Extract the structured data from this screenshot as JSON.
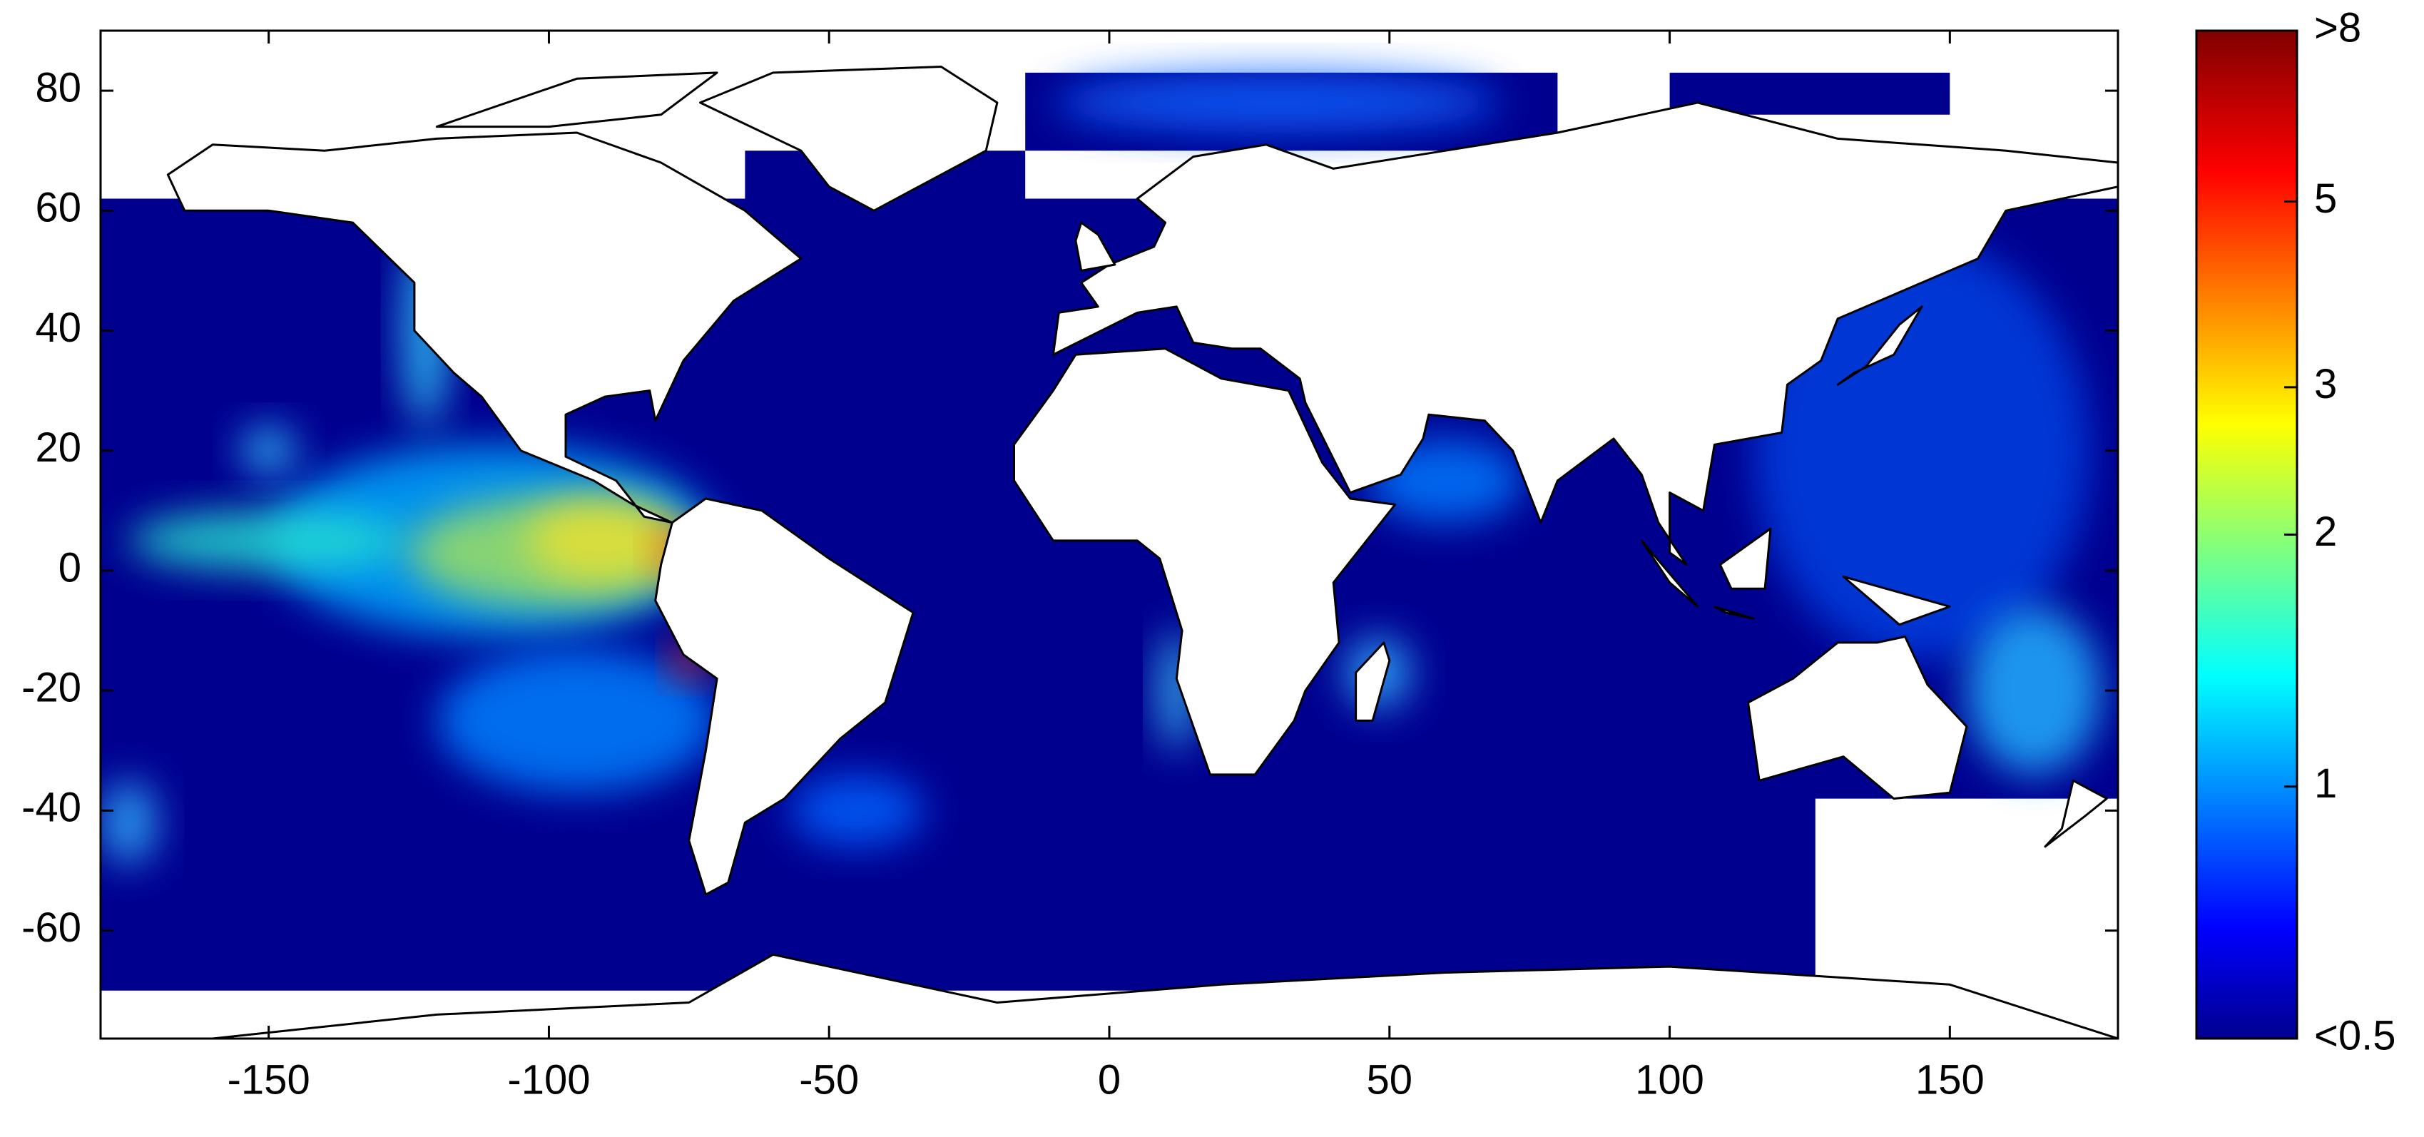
{
  "chart_data": {
    "type": "map",
    "xlim": [
      -180,
      180
    ],
    "ylim": [
      -78,
      90
    ],
    "xticks": [
      -150,
      -100,
      -50,
      0,
      50,
      100,
      150
    ],
    "yticks": [
      -60,
      -40,
      -20,
      0,
      20,
      40,
      60,
      80
    ],
    "colorbar": {
      "lim": [
        0.5,
        8
      ],
      "log": true,
      "colormap": "jet",
      "ticks": [
        {
          "value": 0.5,
          "label": "<0.5"
        },
        1,
        2,
        3,
        5,
        {
          "value": 8,
          "label": ">8"
        }
      ]
    }
  }
}
